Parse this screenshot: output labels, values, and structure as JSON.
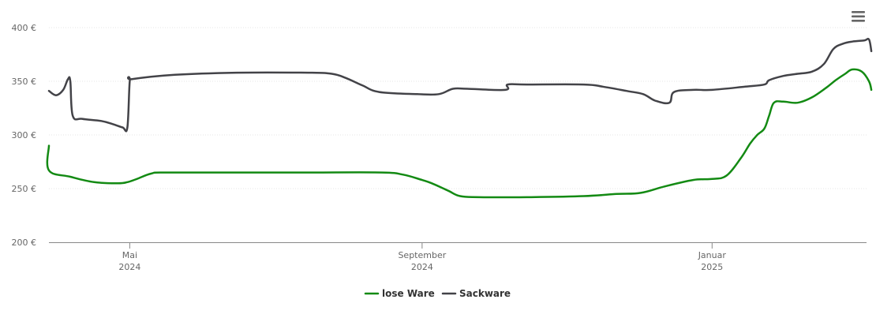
{
  "chart_data": {
    "type": "line",
    "yticks": [
      "400 €",
      "350 €",
      "300 €",
      "250 €",
      "200 €"
    ],
    "ytick_values": [
      400,
      350,
      300,
      250,
      200
    ],
    "ylim": [
      200,
      400
    ],
    "xlim": [
      "2024-03-28",
      "2025-03-01"
    ],
    "xticks": [
      {
        "date": "2024-05-01",
        "month": "Mai",
        "year": "2024"
      },
      {
        "date": "2024-09-01",
        "month": "September",
        "year": "2024"
      },
      {
        "date": "2025-01-01",
        "month": "Januar",
        "year": "2025"
      }
    ],
    "grid": true,
    "legend_position": "bottom-center",
    "series": [
      {
        "name": "lose Ware",
        "color": "#138a13",
        "points": [
          [
            "2024-03-28",
            290
          ],
          [
            "2024-03-28",
            267
          ],
          [
            "2024-04-06",
            261
          ],
          [
            "2024-04-16",
            256
          ],
          [
            "2024-04-26",
            255
          ],
          [
            "2024-04-30",
            256
          ],
          [
            "2024-05-04",
            259
          ],
          [
            "2024-05-10",
            264
          ],
          [
            "2024-05-16",
            265
          ],
          [
            "2024-06-15",
            265
          ],
          [
            "2024-07-15",
            265
          ],
          [
            "2024-08-15",
            265
          ],
          [
            "2024-08-24",
            263
          ],
          [
            "2024-09-01",
            258
          ],
          [
            "2024-09-05",
            255
          ],
          [
            "2024-09-12",
            248
          ],
          [
            "2024-09-17",
            243
          ],
          [
            "2024-09-25",
            242
          ],
          [
            "2024-10-15",
            242
          ],
          [
            "2024-11-08",
            243
          ],
          [
            "2024-11-22",
            245
          ],
          [
            "2024-12-02",
            246
          ],
          [
            "2024-12-12",
            252
          ],
          [
            "2024-12-24",
            258
          ],
          [
            "2025-01-01",
            259
          ],
          [
            "2025-01-07",
            262
          ],
          [
            "2025-01-13",
            278
          ],
          [
            "2025-01-17",
            292
          ],
          [
            "2025-01-20",
            300
          ],
          [
            "2025-01-23",
            306
          ],
          [
            "2025-01-25",
            318
          ],
          [
            "2025-01-27",
            330
          ],
          [
            "2025-01-31",
            331
          ],
          [
            "2025-02-06",
            330
          ],
          [
            "2025-02-12",
            335
          ],
          [
            "2025-02-18",
            344
          ],
          [
            "2025-02-22",
            351
          ],
          [
            "2025-02-26",
            357
          ],
          [
            "2025-03-01",
            361
          ],
          [
            "2025-03-05",
            359
          ],
          [
            "2025-03-08",
            350
          ],
          [
            "2025-03-09",
            342
          ]
        ]
      },
      {
        "name": "Sackware",
        "color": "#434348",
        "points": [
          [
            "2024-03-28",
            341
          ],
          [
            "2024-03-31",
            337
          ],
          [
            "2024-04-03",
            342
          ],
          [
            "2024-04-05",
            352
          ],
          [
            "2024-04-06",
            350
          ],
          [
            "2024-04-07",
            318
          ],
          [
            "2024-04-11",
            315
          ],
          [
            "2024-04-19",
            313
          ],
          [
            "2024-04-24",
            310
          ],
          [
            "2024-04-28",
            307
          ],
          [
            "2024-04-30",
            307
          ],
          [
            "2024-05-01",
            350
          ],
          [
            "2024-05-02",
            352
          ],
          [
            "2024-05-20",
            356
          ],
          [
            "2024-06-15",
            358
          ],
          [
            "2024-07-15",
            358
          ],
          [
            "2024-07-25",
            357
          ],
          [
            "2024-07-31",
            353
          ],
          [
            "2024-08-07",
            346
          ],
          [
            "2024-08-14",
            340
          ],
          [
            "2024-08-30",
            338
          ],
          [
            "2024-09-08",
            338
          ],
          [
            "2024-09-14",
            343
          ],
          [
            "2024-09-20",
            343
          ],
          [
            "2024-10-06",
            342
          ],
          [
            "2024-10-07",
            347
          ],
          [
            "2024-10-15",
            347
          ],
          [
            "2024-11-08",
            347
          ],
          [
            "2024-11-16",
            345
          ],
          [
            "2024-11-26",
            341
          ],
          [
            "2024-12-03",
            338
          ],
          [
            "2024-12-08",
            332
          ],
          [
            "2024-12-14",
            330
          ],
          [
            "2024-12-16",
            340
          ],
          [
            "2024-12-24",
            342
          ],
          [
            "2025-01-01",
            342
          ],
          [
            "2025-01-15",
            345
          ],
          [
            "2025-01-23",
            347
          ],
          [
            "2025-01-25",
            351
          ],
          [
            "2025-01-31",
            355
          ],
          [
            "2025-02-06",
            357
          ],
          [
            "2025-02-12",
            359
          ],
          [
            "2025-02-17",
            366
          ],
          [
            "2025-02-21",
            380
          ],
          [
            "2025-02-25",
            385
          ],
          [
            "2025-03-01",
            387
          ],
          [
            "2025-03-06",
            388
          ],
          [
            "2025-03-08",
            389
          ],
          [
            "2025-03-09",
            378
          ]
        ]
      }
    ]
  },
  "menu": {
    "icon": "hamburger-menu-icon"
  }
}
